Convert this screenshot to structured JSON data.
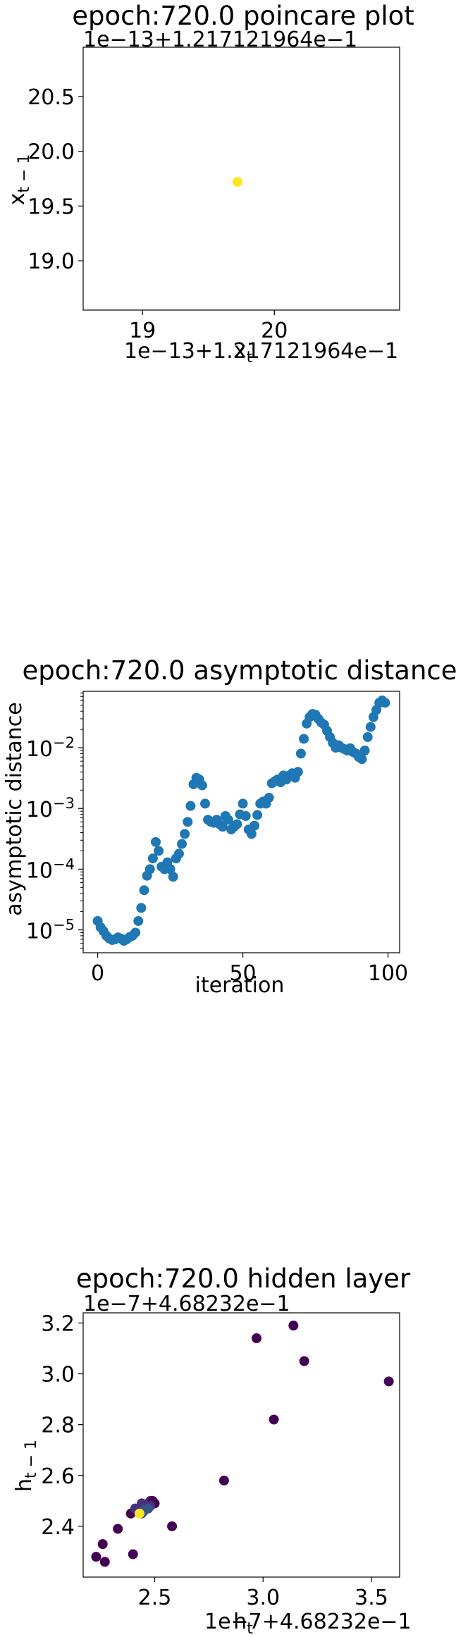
{
  "chart_data": [
    {
      "type": "scatter",
      "title": "epoch:720.0 poincare plot",
      "xlabel": "x_t",
      "ylabel": "x_{t-1}",
      "x_offset_text": "1e−13+1.217121964e−1",
      "y_offset_text": "1e−13+1.217121964e−1",
      "xlim": [
        18.55,
        20.95
      ],
      "ylim": [
        18.55,
        20.95
      ],
      "xticks": [
        19,
        20
      ],
      "yticks": [
        19.0,
        19.5,
        20.0,
        20.5
      ],
      "xtick_labels": [
        "19",
        "20"
      ],
      "ytick_labels": [
        "19.0",
        "19.5",
        "20.0",
        "20.5"
      ],
      "x": [
        19.72
      ],
      "y": [
        19.72
      ],
      "colors": [
        "#fde725"
      ]
    },
    {
      "type": "scatter",
      "title": "epoch:720.0 asymptotic distance",
      "xlabel": "iteration",
      "ylabel": "asymptotic distance",
      "yscale": "log",
      "xlim": [
        -5,
        104
      ],
      "ylim": [
        4.2e-06,
        0.085
      ],
      "xticks": [
        0,
        50,
        100
      ],
      "xtick_labels": [
        "0",
        "50",
        "100"
      ],
      "ytick_labels": [
        "10−5",
        "10−4",
        "10−3",
        "10−2"
      ],
      "color": "#1f77b4",
      "x": [
        0,
        1,
        2,
        3,
        4,
        5,
        6,
        7,
        8,
        9,
        10,
        11,
        12,
        13,
        14,
        15,
        16,
        17,
        18,
        19,
        20,
        21,
        22,
        23,
        24,
        25,
        26,
        27,
        28,
        29,
        30,
        31,
        32,
        33,
        34,
        35,
        36,
        37,
        38,
        39,
        40,
        41,
        42,
        43,
        44,
        45,
        46,
        47,
        48,
        49,
        50,
        51,
        52,
        53,
        54,
        55,
        56,
        57,
        58,
        59,
        60,
        61,
        62,
        63,
        64,
        65,
        66,
        67,
        68,
        69,
        70,
        71,
        72,
        73,
        74,
        75,
        76,
        77,
        78,
        79,
        80,
        81,
        82,
        83,
        84,
        85,
        86,
        87,
        88,
        89,
        90,
        91,
        92,
        93,
        94,
        95,
        96,
        97,
        98,
        99
      ],
      "y": [
        1.4e-05,
        1.1e-05,
        9.5e-06,
        8e-06,
        7.2e-06,
        6.8e-06,
        7e-06,
        7.5e-06,
        7.2e-06,
        6.6e-06,
        7e-06,
        7.6e-06,
        8e-06,
        9e-06,
        1.4e-05,
        2.3e-05,
        4.5e-05,
        7.8e-05,
        0.0001,
        0.00015,
        0.00028,
        0.0002,
        0.00011,
        0.0001,
        0.00013,
        0.0001,
        7.5e-05,
        0.00015,
        0.00018,
        0.00026,
        0.00038,
        0.0006,
        0.0011,
        0.0025,
        0.0032,
        0.003,
        0.0024,
        0.0012,
        0.00065,
        0.0006,
        0.00058,
        0.00065,
        0.00055,
        0.0005,
        0.00075,
        0.00065,
        0.00045,
        0.0005,
        0.00055,
        0.0008,
        0.0012,
        0.00075,
        0.00045,
        0.00038,
        0.00052,
        0.00078,
        0.0012,
        0.0013,
        0.0012,
        0.0015,
        0.0026,
        0.0028,
        0.003,
        0.0027,
        0.0035,
        0.003,
        0.0035,
        0.0038,
        0.0032,
        0.004,
        0.008,
        0.014,
        0.025,
        0.032,
        0.036,
        0.035,
        0.03,
        0.026,
        0.024,
        0.019,
        0.015,
        0.012,
        0.01,
        0.011,
        0.01,
        0.0095,
        0.009,
        0.0098,
        0.0085,
        0.008,
        0.007,
        0.0065,
        0.009,
        0.015,
        0.022,
        0.032,
        0.042,
        0.055,
        0.06,
        0.055
      ]
    },
    {
      "type": "scatter",
      "title": "epoch:720.0 hidden layer",
      "xlabel": "h_t",
      "ylabel": "h_{t-1}",
      "x_offset_text": "1e−7+4.68232e−1",
      "y_offset_text": "1e−7+4.68232e−1",
      "xlim": [
        2.17,
        3.63
      ],
      "ylim": [
        2.2,
        3.24
      ],
      "xticks": [
        2.5,
        3.0,
        3.5
      ],
      "yticks": [
        2.4,
        2.6,
        2.8,
        3.0,
        3.2
      ],
      "xtick_labels": [
        "2.5",
        "3.0",
        "3.5"
      ],
      "ytick_labels": [
        "2.4",
        "2.6",
        "2.8",
        "3.0",
        "3.2"
      ],
      "x": [
        3.58,
        3.19,
        3.14,
        2.97,
        3.05,
        2.82,
        2.58,
        2.4,
        2.33,
        2.26,
        2.23,
        2.27,
        2.39,
        2.41,
        2.44,
        2.45,
        2.46,
        2.47,
        2.48,
        2.49,
        2.5,
        2.48,
        2.47,
        2.45,
        2.44,
        2.43
      ],
      "y": [
        2.97,
        3.05,
        3.19,
        3.14,
        2.82,
        2.58,
        2.4,
        2.29,
        2.39,
        2.33,
        2.28,
        2.26,
        2.45,
        2.47,
        2.49,
        2.48,
        2.47,
        2.49,
        2.5,
        2.5,
        2.49,
        2.48,
        2.47,
        2.46,
        2.45,
        2.45
      ],
      "colors": [
        "#440154",
        "#440154",
        "#440154",
        "#440154",
        "#440154",
        "#440154",
        "#440154",
        "#440154",
        "#440154",
        "#440154",
        "#440154",
        "#440154",
        "#440154",
        "#46327e",
        "#46327e",
        "#46327e",
        "#3b528b",
        "#46327e",
        "#46327e",
        "#440154",
        "#440154",
        "#46327e",
        "#3b528b",
        "#3b528b",
        "#3b528b",
        "#fde725"
      ]
    }
  ]
}
